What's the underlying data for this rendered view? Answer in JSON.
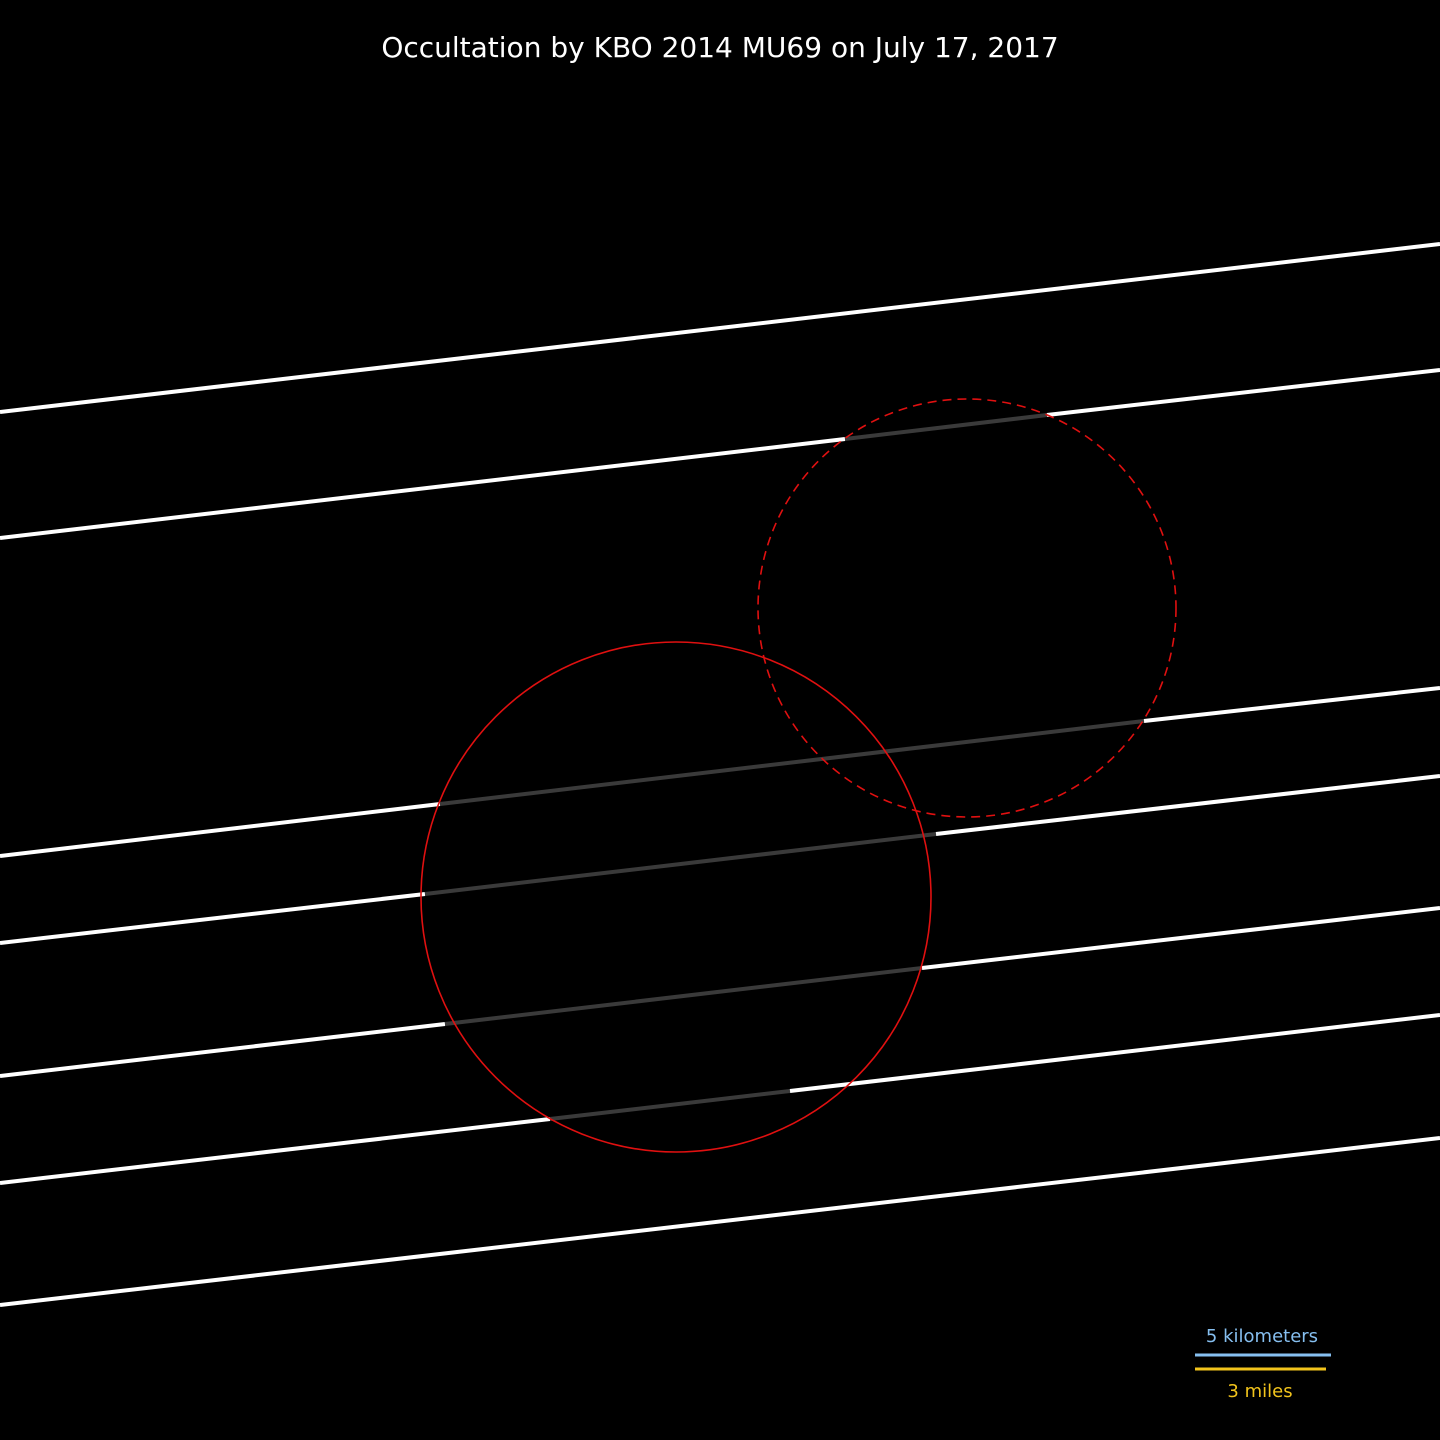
{
  "title": "Occultation by KBO 2014 MU69 on July 17, 2017",
  "colors": {
    "background": "#000000",
    "chord_clear": "#ffffff",
    "chord_occulted": "#3a3a3a",
    "body_outline": "#e01010",
    "km_scale": "#86bff0",
    "mile_scale": "#f2c41c"
  },
  "scale_bar": {
    "km_label": "5 kilometers",
    "mile_label": "3 miles"
  },
  "bodies": [
    {
      "name": "primary-lobe",
      "style": "solid"
    },
    {
      "name": "secondary-lobe",
      "style": "dashed"
    }
  ]
}
